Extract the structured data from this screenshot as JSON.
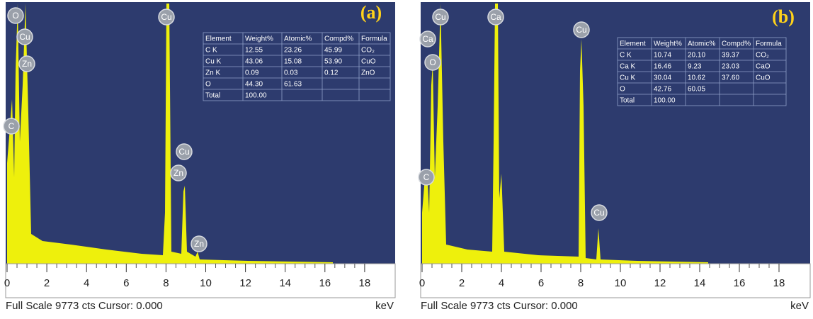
{
  "panels": [
    {
      "label": "(a)",
      "unit": "keV",
      "footer": "Full Scale 9773 cts Cursor: 0.000",
      "xlim": [
        0,
        19.4
      ],
      "xticks": [
        0,
        2,
        4,
        6,
        8,
        10,
        12,
        14,
        16,
        18
      ],
      "peak_labels": [
        "O",
        "Cu",
        "Zn",
        "C",
        "Cu",
        "Cu",
        "Zn",
        "Zn"
      ],
      "table": {
        "header": [
          "Element",
          "Weight%",
          "Atomic%",
          "Compd%",
          "Formula"
        ],
        "rows": [
          [
            "C K",
            "12.55",
            "23.26",
            "45.99",
            "CO₂"
          ],
          [
            "Cu K",
            "43.06",
            "15.08",
            "53.90",
            "CuO"
          ],
          [
            "Zn K",
            "0.09",
            "0.03",
            "0.12",
            "ZnO"
          ],
          [
            "O",
            "44.30",
            "61.63"
          ],
          [
            "Total",
            "100.00"
          ]
        ]
      }
    },
    {
      "label": "(b)",
      "unit": "keV",
      "footer": "Full Scale 9773 cts Cursor: 0.000",
      "xlim": [
        0,
        19.4
      ],
      "xticks": [
        0,
        2,
        4,
        6,
        8,
        10,
        12,
        14,
        16,
        18
      ],
      "peak_labels": [
        "Ca",
        "O",
        "Cu",
        "C",
        "Ca",
        "Cu",
        "Cu"
      ],
      "table": {
        "header": [
          "Element",
          "Weight%",
          "Atomic%",
          "Compd%",
          "Formula"
        ],
        "rows": [
          [
            "C K",
            "10.74",
            "20.10",
            "39.37",
            "CO₂"
          ],
          [
            "Ca K",
            "16.46",
            "9.23",
            "23.03",
            "CaO"
          ],
          [
            "Cu K",
            "30.04",
            "10.62",
            "37.60",
            "CuO"
          ],
          [
            "O",
            "42.76",
            "60.05"
          ],
          [
            "Total",
            "100.00"
          ]
        ]
      }
    }
  ]
}
